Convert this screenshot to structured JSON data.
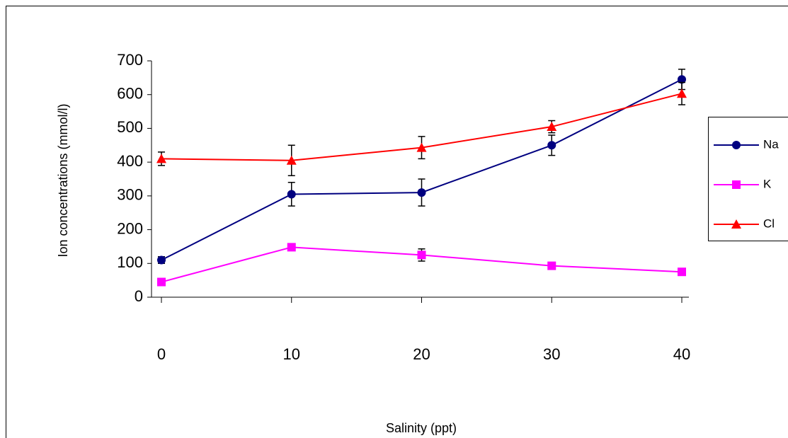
{
  "chart_data": {
    "type": "line",
    "x_label": "Salinity (ppt)",
    "y_label": "Ion concentrations (mmol/l)",
    "x": [
      0,
      10,
      20,
      30,
      40
    ],
    "xlim": [
      0,
      40
    ],
    "xticks": [
      0,
      10,
      20,
      30,
      40
    ],
    "ylim": [
      0,
      700
    ],
    "yticks": [
      0,
      100,
      200,
      300,
      400,
      500,
      600,
      700
    ],
    "legend": "right",
    "series": [
      {
        "name": "Na",
        "color": "#000080",
        "marker": "circle",
        "values": [
          110,
          305,
          310,
          450,
          645
        ],
        "errors": [
          10,
          35,
          40,
          30,
          30
        ]
      },
      {
        "name": "K",
        "color": "#ff00ff",
        "marker": "square",
        "values": [
          45,
          148,
          125,
          93,
          75
        ],
        "errors": [
          5,
          8,
          18,
          8,
          8
        ]
      },
      {
        "name": "Cl",
        "color": "#ff0000",
        "marker": "triangle",
        "values": [
          410,
          405,
          443,
          505,
          603
        ],
        "errors": [
          20,
          45,
          33,
          18,
          33
        ]
      }
    ]
  }
}
